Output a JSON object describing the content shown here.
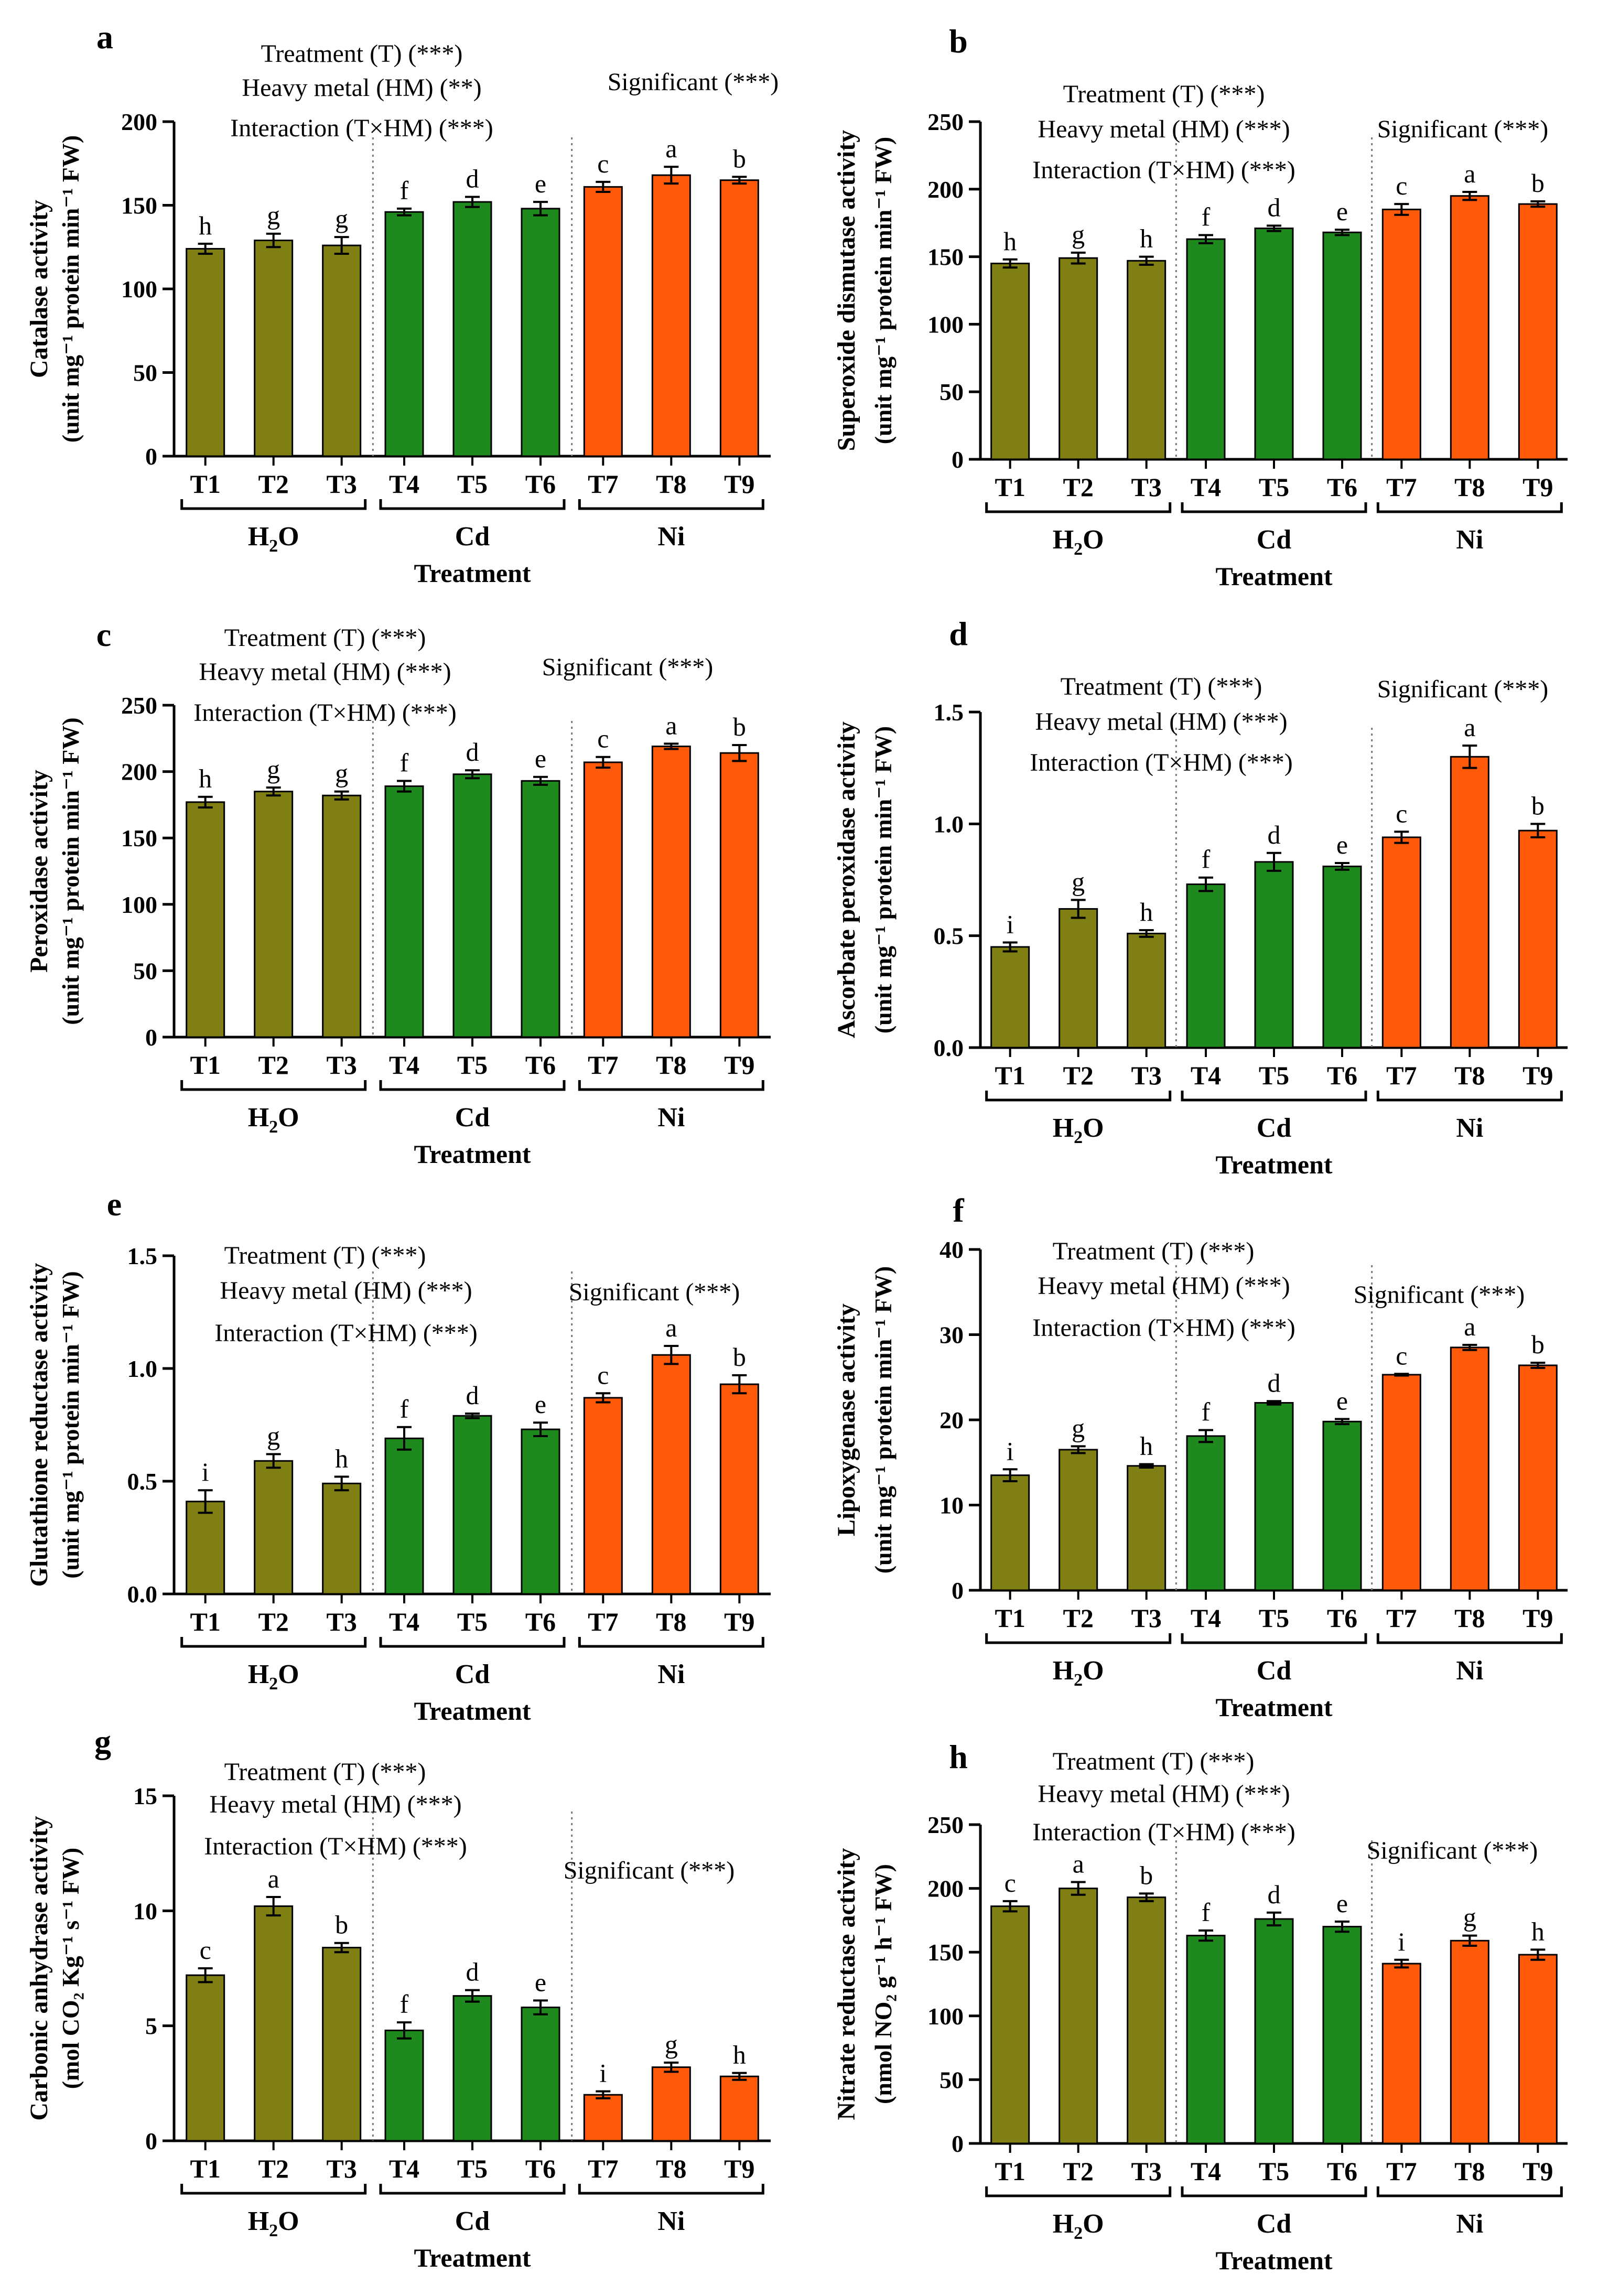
{
  "colors": {
    "H2O": "#7f7f14",
    "Cd": "#1e8a1e",
    "Ni": "#ff5a0a"
  },
  "groups": [
    {
      "key": "H2O",
      "label_main": "H",
      "label_sub": "2",
      "label_tail": "O"
    },
    {
      "key": "Cd",
      "label_main": "Cd",
      "label_sub": "",
      "label_tail": ""
    },
    {
      "key": "Ni",
      "label_main": "Ni",
      "label_sub": "",
      "label_tail": ""
    }
  ],
  "common": {
    "xlabel": "Treatment"
  },
  "chart_data": [
    {
      "panel": "a",
      "type": "bar",
      "categories": [
        "T1",
        "T2",
        "T3",
        "T4",
        "T5",
        "T6",
        "T7",
        "T8",
        "T9"
      ],
      "values": [
        124,
        129,
        126,
        146,
        152,
        148,
        161,
        168,
        165
      ],
      "errors": [
        3,
        4,
        5,
        2,
        3,
        4,
        3,
        5,
        2
      ],
      "letters": [
        "h",
        "g",
        "g",
        "f",
        "d",
        "e",
        "c",
        "a",
        "b"
      ],
      "ylabel_line1": "Catalase activity",
      "ylabel_line2": "(unit mg⁻¹ protein min⁻¹ FW)",
      "ylim": [
        0,
        200
      ],
      "ticks": [
        0,
        50,
        100,
        150,
        200
      ],
      "annotations": [
        "Treatment (T) (***)",
        "Heavy metal (HM) (**)",
        "Interaction (T×HM) (***)"
      ],
      "significant": "Significant (***)"
    },
    {
      "panel": "b",
      "type": "bar",
      "categories": [
        "T1",
        "T2",
        "T3",
        "T4",
        "T5",
        "T6",
        "T7",
        "T8",
        "T9"
      ],
      "values": [
        145,
        149,
        147,
        163,
        171,
        168,
        185,
        195,
        189
      ],
      "errors": [
        3,
        4,
        3,
        3,
        2,
        2,
        4,
        3,
        2
      ],
      "letters": [
        "h",
        "g",
        "h",
        "f",
        "d",
        "e",
        "c",
        "a",
        "b"
      ],
      "ylabel_line1": "Superoxide dismutase activity",
      "ylabel_line2": "(unit mg⁻¹ protein min⁻¹ FW)",
      "ylim": [
        0,
        250
      ],
      "ticks": [
        0,
        50,
        100,
        150,
        200,
        250
      ],
      "annotations": [
        "Treatment (T) (***)",
        "Heavy metal (HM) (***)",
        "Interaction (T×HM) (***)"
      ],
      "significant": "Significant (***)"
    },
    {
      "panel": "c",
      "type": "bar",
      "categories": [
        "T1",
        "T2",
        "T3",
        "T4",
        "T5",
        "T6",
        "T7",
        "T8",
        "T9"
      ],
      "values": [
        177,
        185,
        182,
        189,
        198,
        193,
        207,
        219,
        214
      ],
      "errors": [
        4,
        3,
        3,
        4,
        3,
        3,
        4,
        2,
        6
      ],
      "letters": [
        "h",
        "g",
        "g",
        "f",
        "d",
        "e",
        "c",
        "a",
        "b"
      ],
      "ylabel_line1": "Peroxidase activity",
      "ylabel_line2": "(unit mg⁻¹ protein min⁻¹ FW)",
      "ylim": [
        0,
        250
      ],
      "ticks": [
        0,
        50,
        100,
        150,
        200,
        250
      ],
      "annotations": [
        "Treatment (T) (***)",
        "Heavy metal (HM) (***)",
        "Interaction (T×HM) (***)"
      ],
      "significant": "Significant (***)"
    },
    {
      "panel": "d",
      "type": "bar",
      "categories": [
        "T1",
        "T2",
        "T3",
        "T4",
        "T5",
        "T6",
        "T7",
        "T8",
        "T9"
      ],
      "values": [
        0.45,
        0.62,
        0.51,
        0.73,
        0.83,
        0.81,
        0.94,
        1.3,
        0.97
      ],
      "errors": [
        0.02,
        0.04,
        0.015,
        0.03,
        0.04,
        0.015,
        0.025,
        0.05,
        0.03
      ],
      "letters": [
        "i",
        "g",
        "h",
        "f",
        "d",
        "e",
        "c",
        "a",
        "b"
      ],
      "ylabel_line1": "Ascorbate peroxidase activity",
      "ylabel_line2": "(unit mg⁻¹ protein min⁻¹ FW)",
      "ylim": [
        0,
        1.5
      ],
      "ticks": [
        "0.0",
        "0.5",
        "1.0",
        "1.5"
      ],
      "annotations": [
        "Treatment (T) (***)",
        "Heavy metal (HM) (***)",
        "Interaction (T×HM) (***)"
      ],
      "significant": "Significant (***)"
    },
    {
      "panel": "e",
      "type": "bar",
      "categories": [
        "T1",
        "T2",
        "T3",
        "T4",
        "T5",
        "T6",
        "T7",
        "T8",
        "T9"
      ],
      "values": [
        0.41,
        0.59,
        0.49,
        0.69,
        0.79,
        0.73,
        0.87,
        1.06,
        0.93
      ],
      "errors": [
        0.05,
        0.03,
        0.03,
        0.05,
        0.01,
        0.03,
        0.02,
        0.04,
        0.04
      ],
      "letters": [
        "i",
        "g",
        "h",
        "f",
        "d",
        "e",
        "c",
        "a",
        "b"
      ],
      "ylabel_line1": "Glutathione reductase activity",
      "ylabel_line2": "(unit mg⁻¹ protein min⁻¹ FW)",
      "ylim": [
        0,
        1.5
      ],
      "ticks": [
        "0.0",
        "0.5",
        "1.0",
        "1.5"
      ],
      "annotations": [
        "Treatment (T) (***)",
        "Heavy metal (HM) (***)",
        "Interaction (T×HM) (***)"
      ],
      "significant": "Significant (***)"
    },
    {
      "panel": "f",
      "type": "bar",
      "categories": [
        "T1",
        "T2",
        "T3",
        "T4",
        "T5",
        "T6",
        "T7",
        "T8",
        "T9"
      ],
      "values": [
        13.5,
        16.5,
        14.6,
        18.1,
        22,
        19.8,
        25.3,
        28.5,
        26.4
      ],
      "errors": [
        0.7,
        0.4,
        0.2,
        0.7,
        0.2,
        0.3,
        0.1,
        0.3,
        0.3
      ],
      "letters": [
        "i",
        "g",
        "h",
        "f",
        "d",
        "e",
        "c",
        "a",
        "b"
      ],
      "ylabel_line1": "Lipoxygenase activity",
      "ylabel_line2": "(unit mg⁻¹ protein min⁻¹ FW)",
      "ylim": [
        0,
        40
      ],
      "ticks": [
        0,
        10,
        20,
        30,
        40
      ],
      "annotations": [
        "Treatment (T) (***)",
        "Heavy metal (HM) (***)",
        "Interaction (T×HM) (***)"
      ],
      "significant": "Significant (***)"
    },
    {
      "panel": "g",
      "type": "bar",
      "categories": [
        "T1",
        "T2",
        "T3",
        "T4",
        "T5",
        "T6",
        "T7",
        "T8",
        "T9"
      ],
      "values": [
        7.2,
        10.2,
        8.4,
        4.8,
        6.3,
        5.8,
        2.0,
        3.2,
        2.8
      ],
      "errors": [
        0.3,
        0.4,
        0.2,
        0.35,
        0.25,
        0.3,
        0.15,
        0.2,
        0.15
      ],
      "letters": [
        "c",
        "a",
        "b",
        "f",
        "d",
        "e",
        "i",
        "g",
        "h"
      ],
      "ylabel_line1": "Carbonic anhydrase activity",
      "ylabel_line2": "(mol CO₂ Kg⁻¹ s⁻¹ FW)",
      "ylim": [
        0,
        15
      ],
      "ticks": [
        0,
        5,
        10,
        15
      ],
      "annotations": [
        "Treatment (T) (***)",
        "Heavy metal (HM) (***)",
        "Interaction (T×HM) (***)"
      ],
      "significant": "Significant (***)"
    },
    {
      "panel": "h",
      "type": "bar",
      "categories": [
        "T1",
        "T2",
        "T3",
        "T4",
        "T5",
        "T6",
        "T7",
        "T8",
        "T9"
      ],
      "values": [
        186,
        200,
        193,
        163,
        176,
        170,
        141,
        159,
        148
      ],
      "errors": [
        4,
        5,
        3,
        4,
        5,
        4,
        3,
        4,
        4
      ],
      "letters": [
        "c",
        "a",
        "b",
        "f",
        "d",
        "e",
        "i",
        "g",
        "h"
      ],
      "ylabel_line1": "Nitrate reductase activity",
      "ylabel_line2": "(nmol NO₂ g⁻¹ h⁻¹ FW)",
      "ylim": [
        0,
        250
      ],
      "ticks": [
        0,
        50,
        100,
        150,
        200,
        250
      ],
      "annotations": [
        "Treatment (T) (***)",
        "Heavy metal (HM) (***)",
        "Interaction (T×HM) (***)"
      ],
      "significant": "Significant (***)"
    }
  ]
}
